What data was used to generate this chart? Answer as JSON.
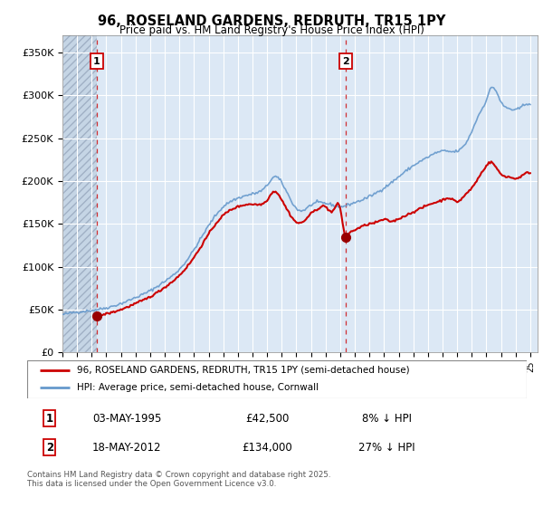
{
  "title": "96, ROSELAND GARDENS, REDRUTH, TR15 1PY",
  "subtitle": "Price paid vs. HM Land Registry's House Price Index (HPI)",
  "background_color": "#ffffff",
  "plot_bg_color": "#dce8f5",
  "hatch_color": "#b0bfd0",
  "grid_color": "#ffffff",
  "red_line_color": "#cc0000",
  "blue_line_color": "#6699cc",
  "sale_marker_color": "#990000",
  "dashed_line_color": "#cc0000",
  "legend_label_red": "96, ROSELAND GARDENS, REDRUTH, TR15 1PY (semi-detached house)",
  "legend_label_blue": "HPI: Average price, semi-detached house, Cornwall",
  "table_row1": [
    "1",
    "03-MAY-1995",
    "£42,500",
    "8% ↓ HPI"
  ],
  "table_row2": [
    "2",
    "18-MAY-2012",
    "£134,000",
    "27% ↓ HPI"
  ],
  "footer": "Contains HM Land Registry data © Crown copyright and database right 2025.\nThis data is licensed under the Open Government Licence v3.0.",
  "ylim": [
    0,
    370000
  ],
  "yticks": [
    0,
    50000,
    100000,
    150000,
    200000,
    250000,
    300000,
    350000
  ],
  "ytick_labels": [
    "£0",
    "£50K",
    "£100K",
    "£150K",
    "£200K",
    "£250K",
    "£300K",
    "£350K"
  ],
  "sale1_x": 1995.33,
  "sale1_y": 42500,
  "sale2_x": 2012.38,
  "sale2_y": 134000,
  "xmin": 1993.0,
  "xmax": 2025.5
}
